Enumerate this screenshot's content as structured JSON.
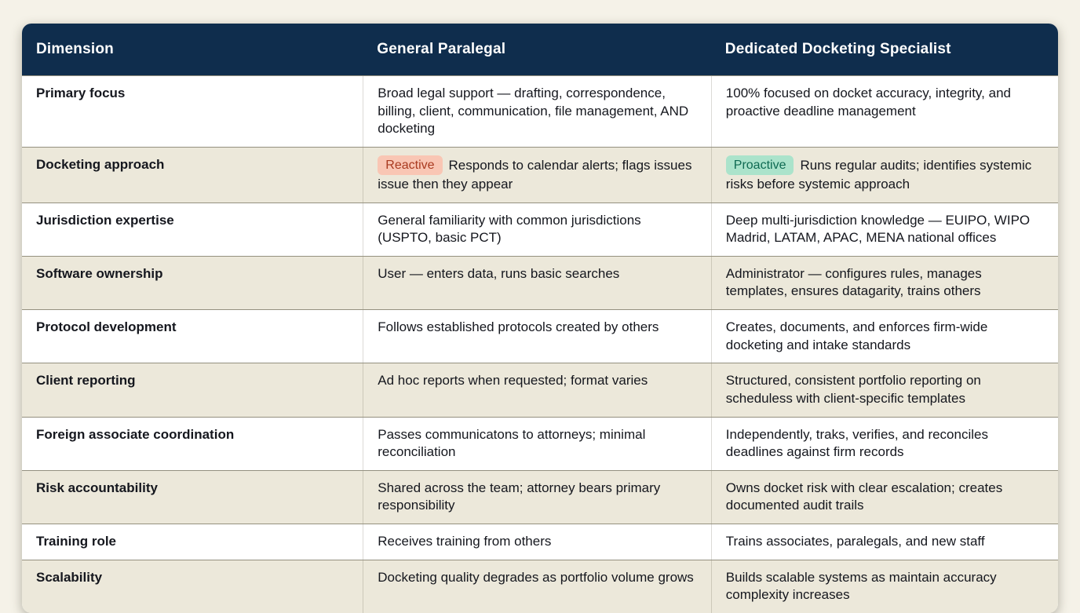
{
  "table": {
    "columns": [
      {
        "label": "Dimension"
      },
      {
        "label": "General Paralegal"
      },
      {
        "label": "Dedicated Docketing Specialist"
      }
    ],
    "rows": [
      {
        "dimension": "Primary focus",
        "paralegal": "Broad legal support — drafting, correspondence, billing, client, communication, file management, AND docketing",
        "specialist": "100% focused on docket accuracy, integrity, and proactive deadline management"
      },
      {
        "dimension": "Docketing approach",
        "paralegal_badge": "Reactive",
        "paralegal": "Responds to calendar alerts; flags issues issue then they appear",
        "specialist_badge": "Proactive",
        "specialist": "Runs regular audits; identifies systemic risks before systemic approach"
      },
      {
        "dimension": "Jurisdiction expertise",
        "paralegal": "General familiarity with common jurisdictions (USPTO, basic PCT)",
        "specialist": "Deep multi-jurisdiction knowledge — EUIPO, WIPO Madrid, LATAM, APAC, MENA national offices"
      },
      {
        "dimension": "Software ownership",
        "paralegal": "User — enters data, runs basic searches",
        "specialist": "Administrator — configures rules, manages templates, ensures datagarity, trains others"
      },
      {
        "dimension": "Protocol development",
        "paralegal": "Follows established protocols created by others",
        "specialist": "Creates, documents, and enforces firm-wide docketing and intake standards"
      },
      {
        "dimension": "Client reporting",
        "paralegal": "Ad hoc reports when requested; format varies",
        "specialist": "Structured, consistent portfolio reporting on scheduless with client-specific templates"
      },
      {
        "dimension": "Foreign associate coordination",
        "paralegal": "Passes communicatons to attorneys; minimal reconciliation",
        "specialist": "Independently, traks, verifies, and reconciles deadlines against firm records"
      },
      {
        "dimension": "Risk accountability",
        "paralegal": "Shared across the team; attorney bears primary responsibility",
        "specialist": "Owns docket risk with clear escalation; creates documented audit trails"
      },
      {
        "dimension": "Training role",
        "paralegal": "Receives training from others",
        "specialist": "Trains associates, paralegals, and new staff"
      },
      {
        "dimension": "Scalability",
        "paralegal": "Docketing quality degrades as portfolio volume grows",
        "specialist": "Builds scalable systems as maintain accuracy complexity increases"
      }
    ]
  },
  "colors": {
    "header_bg": "#0f2d4d",
    "row_alt_bg": "#ece8da",
    "reactive_bg": "#f9c6b4",
    "reactive_text": "#a93a20",
    "proactive_bg": "#abe3cb",
    "proactive_text": "#0e6a52"
  }
}
